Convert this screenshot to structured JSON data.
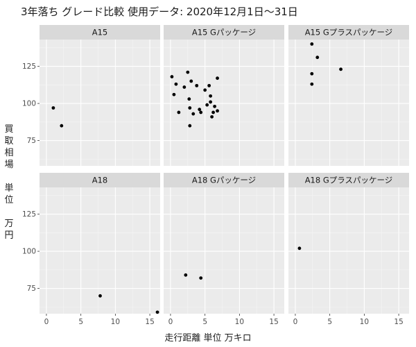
{
  "chart_data": {
    "type": "scatter",
    "title": "3年落ち グレード比較 使用データ: 2020年12月1日〜31日",
    "xlabel": "走行距離 単位 万キロ",
    "ylabel": "買取相場\n\n単位\n\n万円",
    "xlim": [
      -1,
      16.5
    ],
    "ylim": [
      58,
      143
    ],
    "x_ticks": [
      0,
      5,
      10,
      15
    ],
    "y_ticks": [
      75,
      100,
      125
    ],
    "grid": true,
    "layout": "facet-grid 2 rows x 3 columns",
    "panels": [
      {
        "label": "A15",
        "points": [
          [
            1.0,
            97
          ],
          [
            2.2,
            85
          ]
        ]
      },
      {
        "label": "A15  Gパッケージ",
        "points": [
          [
            0.2,
            118
          ],
          [
            0.5,
            106
          ],
          [
            0.8,
            113
          ],
          [
            1.2,
            94
          ],
          [
            2.0,
            111
          ],
          [
            2.5,
            121
          ],
          [
            2.7,
            103
          ],
          [
            2.8,
            97
          ],
          [
            2.8,
            85
          ],
          [
            3.0,
            115
          ],
          [
            3.3,
            93
          ],
          [
            3.8,
            112
          ],
          [
            4.2,
            96
          ],
          [
            4.4,
            94
          ],
          [
            5.0,
            109
          ],
          [
            5.3,
            99
          ],
          [
            5.6,
            112
          ],
          [
            5.8,
            105
          ],
          [
            5.8,
            101
          ],
          [
            6.0,
            91
          ],
          [
            6.2,
            94
          ],
          [
            6.4,
            98
          ],
          [
            6.8,
            95
          ],
          [
            6.8,
            117
          ]
        ]
      },
      {
        "label": "A15  Gプラスパッケージ",
        "points": [
          [
            2.4,
            140
          ],
          [
            2.4,
            120
          ],
          [
            2.4,
            113
          ],
          [
            3.2,
            131
          ],
          [
            6.6,
            123
          ]
        ]
      },
      {
        "label": "A18",
        "points": [
          [
            7.8,
            70
          ],
          [
            16.1,
            59
          ]
        ]
      },
      {
        "label": "A18  Gパッケージ",
        "points": [
          [
            2.2,
            84
          ],
          [
            4.4,
            82
          ]
        ]
      },
      {
        "label": "A18  Gプラスパッケージ",
        "points": [
          [
            0.6,
            102
          ]
        ]
      }
    ]
  }
}
